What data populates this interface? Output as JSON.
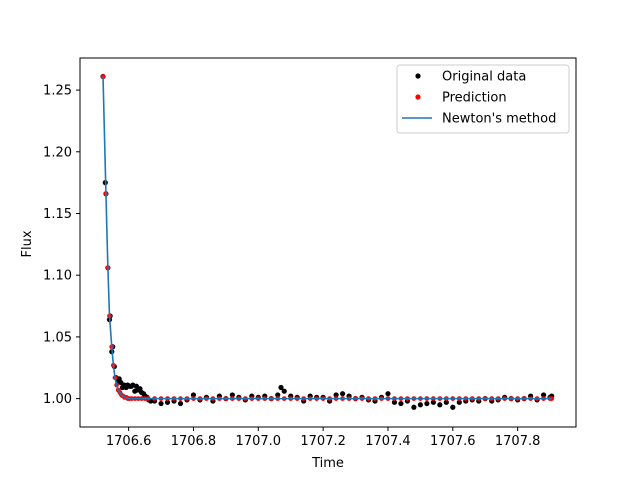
{
  "chart_data": {
    "type": "scatter",
    "xlabel": "Time",
    "ylabel": "Flux",
    "xlim": [
      1706.45,
      1707.98
    ],
    "ylim": [
      0.977,
      1.276
    ],
    "xticks": [
      1706.6,
      1706.8,
      1707.0,
      1707.2,
      1707.4,
      1707.6,
      1707.8
    ],
    "xtick_labels": [
      "1706.6",
      "1706.8",
      "1707.0",
      "1707.2",
      "1707.4",
      "1707.6",
      "1707.8"
    ],
    "yticks": [
      1.0,
      1.05,
      1.1,
      1.15,
      1.2,
      1.25
    ],
    "ytick_labels": [
      "1.00",
      "1.05",
      "1.10",
      "1.15",
      "1.20",
      "1.25"
    ],
    "legend_position": "top-right",
    "colors": {
      "original": "#000000",
      "prediction": "#ff0000",
      "newton": "#1f77b4"
    },
    "series": [
      {
        "name": "Original data",
        "style": "points",
        "x": [
          1706.521,
          1706.528,
          1706.53,
          1706.536,
          1706.541,
          1706.543,
          1706.548,
          1706.551,
          1706.556,
          1706.561,
          1706.566,
          1706.571,
          1706.576,
          1706.581,
          1706.587,
          1706.592,
          1706.597,
          1706.603,
          1706.608,
          1706.613,
          1706.619,
          1706.624,
          1706.629,
          1706.635,
          1706.64,
          1706.646,
          1706.651,
          1706.657,
          1706.662,
          1706.668,
          1706.68,
          1706.7,
          1706.72,
          1706.74,
          1706.76,
          1706.78,
          1706.8,
          1706.82,
          1706.84,
          1706.86,
          1706.88,
          1706.9,
          1706.92,
          1706.94,
          1706.96,
          1706.98,
          1707.0,
          1707.02,
          1707.04,
          1707.06,
          1707.07,
          1707.08,
          1707.1,
          1707.12,
          1707.14,
          1707.16,
          1707.18,
          1707.2,
          1707.22,
          1707.24,
          1707.26,
          1707.28,
          1707.3,
          1707.32,
          1707.34,
          1707.36,
          1707.38,
          1707.4,
          1707.42,
          1707.44,
          1707.46,
          1707.48,
          1707.5,
          1707.52,
          1707.54,
          1707.56,
          1707.58,
          1707.6,
          1707.62,
          1707.64,
          1707.66,
          1707.68,
          1707.7,
          1707.72,
          1707.74,
          1707.76,
          1707.78,
          1707.8,
          1707.82,
          1707.84,
          1707.86,
          1707.88,
          1707.9,
          1707.905
        ],
        "y": [
          1.261,
          1.175,
          1.166,
          1.106,
          1.064,
          1.067,
          1.038,
          1.042,
          1.026,
          1.017,
          1.014,
          1.016,
          1.013,
          1.009,
          1.011,
          1.009,
          1.011,
          1.01,
          1.01,
          1.011,
          1.006,
          1.01,
          1.007,
          1.008,
          1.005,
          1.004,
          1.002,
          1.001,
          0.999,
          0.998,
          0.998,
          0.996,
          0.997,
          0.998,
          0.996,
          0.999,
          1.003,
          0.999,
          1.001,
          0.998,
          1.002,
          1.0,
          1.003,
          1.001,
          0.999,
          1.002,
          1.001,
          1.002,
          1.0,
          1.003,
          1.009,
          1.006,
          1.002,
          1.001,
          0.998,
          1.002,
          1.001,
          1.001,
          0.998,
          1.003,
          1.004,
          1.002,
          1.0,
          1.001,
          0.999,
          0.998,
          1.001,
          1.004,
          0.997,
          0.996,
          0.998,
          0.993,
          0.995,
          0.996,
          0.997,
          0.995,
          0.997,
          0.993,
          0.997,
          0.998,
          0.999,
          0.998,
          1.0,
          0.998,
          0.999,
          1.001,
          1.0,
          0.999,
          1.0,
          1.002,
          0.999,
          1.003,
          1.001,
          1.002
        ]
      },
      {
        "name": "Prediction",
        "style": "points",
        "x": [
          1706.521,
          1706.53,
          1706.536,
          1706.541,
          1706.548,
          1706.553,
          1706.558,
          1706.563,
          1706.568,
          1706.573,
          1706.578,
          1706.583,
          1706.588,
          1706.593,
          1706.598,
          1706.603,
          1706.61,
          1706.62,
          1706.63,
          1706.64,
          1706.65,
          1706.66,
          1706.68,
          1706.7,
          1706.72,
          1706.74,
          1706.76,
          1706.78,
          1706.8,
          1706.82,
          1706.84,
          1706.86,
          1706.88,
          1706.9,
          1706.92,
          1706.94,
          1706.96,
          1706.98,
          1707.0,
          1707.02,
          1707.04,
          1707.06,
          1707.08,
          1707.1,
          1707.12,
          1707.14,
          1707.16,
          1707.18,
          1707.2,
          1707.22,
          1707.24,
          1707.26,
          1707.28,
          1707.3,
          1707.32,
          1707.34,
          1707.36,
          1707.38,
          1707.4,
          1707.42,
          1707.44,
          1707.46,
          1707.48,
          1707.5,
          1707.52,
          1707.54,
          1707.56,
          1707.58,
          1707.6,
          1707.62,
          1707.64,
          1707.66,
          1707.68,
          1707.7,
          1707.72,
          1707.74,
          1707.76,
          1707.78,
          1707.8,
          1707.82,
          1707.84,
          1707.86,
          1707.88,
          1707.9,
          1707.905
        ],
        "y": [
          1.261,
          1.166,
          1.106,
          1.067,
          1.042,
          1.027,
          1.017,
          1.011,
          1.007,
          1.005,
          1.003,
          1.002,
          1.001,
          1.001,
          1.0,
          1.0,
          1.0,
          1.0,
          1.0,
          1.0,
          1.0,
          1.0,
          1.0,
          1.0,
          1.0,
          1.0,
          1.0,
          1.0,
          1.0,
          1.0,
          1.0,
          1.0,
          1.0,
          1.0,
          1.0,
          1.0,
          1.0,
          1.0,
          1.0,
          1.0,
          1.0,
          1.0,
          1.0,
          1.0,
          1.0,
          1.0,
          1.0,
          1.0,
          1.0,
          1.0,
          1.0,
          1.0,
          1.0,
          1.0,
          1.0,
          1.0,
          1.0,
          1.0,
          1.0,
          1.0,
          1.0,
          1.0,
          1.0,
          1.0,
          1.0,
          1.0,
          1.0,
          1.0,
          1.0,
          1.0,
          1.0,
          1.0,
          1.0,
          1.0,
          1.0,
          1.0,
          1.0,
          1.0,
          1.0,
          1.0,
          1.0,
          1.0,
          1.0,
          1.0,
          1.0
        ]
      },
      {
        "name": "Newton's method",
        "style": "line",
        "x": [
          1706.521,
          1706.53,
          1706.536,
          1706.541,
          1706.548,
          1706.553,
          1706.558,
          1706.563,
          1706.568,
          1706.573,
          1706.578,
          1706.583,
          1706.59,
          1706.6,
          1706.62,
          1706.65,
          1706.7,
          1706.8,
          1707.0,
          1707.2,
          1707.4,
          1707.6,
          1707.8,
          1707.905
        ],
        "y": [
          1.261,
          1.166,
          1.106,
          1.067,
          1.042,
          1.027,
          1.017,
          1.011,
          1.007,
          1.005,
          1.003,
          1.002,
          1.001,
          1.0,
          1.0,
          1.0,
          1.0,
          1.0,
          1.0,
          1.0,
          1.0,
          1.0,
          1.0,
          1.0
        ]
      }
    ]
  }
}
